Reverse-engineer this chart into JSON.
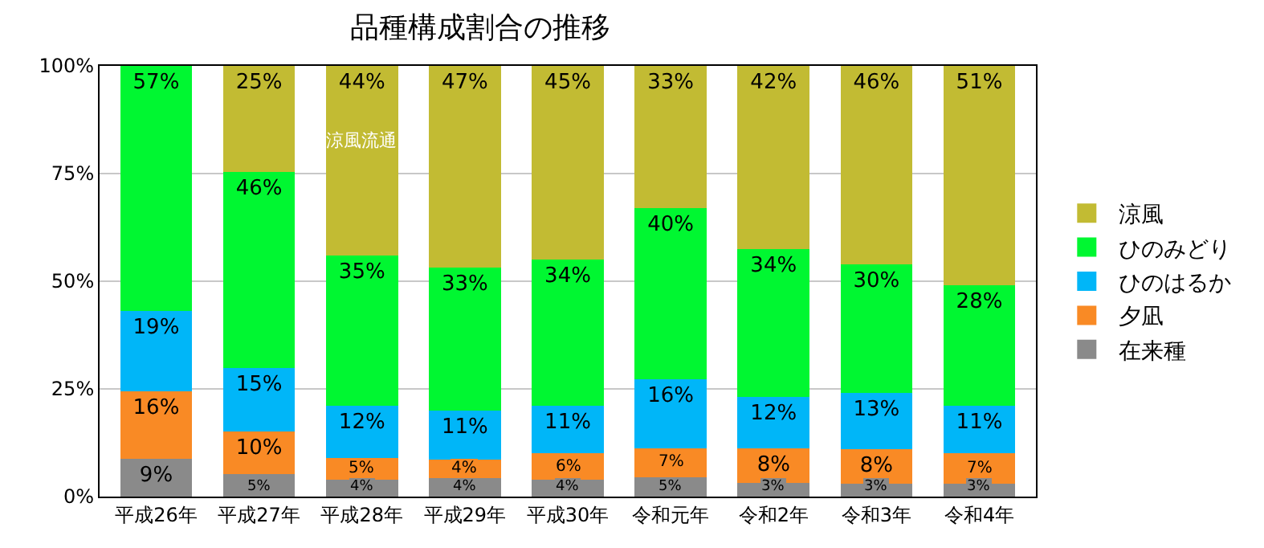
{
  "chart_data": {
    "type": "bar",
    "stacked": true,
    "title": "品種構成割合の推移",
    "categories": [
      "平成26年",
      "平成27年",
      "平成28年",
      "平成29年",
      "平成30年",
      "令和元年",
      "令和2年",
      "令和3年",
      "令和4年"
    ],
    "series": [
      {
        "name": "在来種",
        "color": "#8a8a8a",
        "values": [
          8.7,
          5.3,
          4,
          4.2,
          4,
          4.5,
          3.2,
          3,
          3
        ],
        "value_labels": [
          "9%",
          "5%",
          "4%",
          "4%",
          "4%",
          "5%",
          "3%",
          "3%",
          "3%"
        ]
      },
      {
        "name": "夕凪",
        "color": "#f98a25",
        "values": [
          15.8,
          9.9,
          5,
          4.4,
          6,
          6.7,
          8,
          8,
          7
        ],
        "value_labels": [
          "16%",
          "10%",
          "5%",
          "4%",
          "6%",
          "7%",
          "8%",
          "8%",
          "7%"
        ]
      },
      {
        "name": "ひのはるか",
        "color": "#00b6f8",
        "values": [
          18.6,
          14.7,
          12,
          11.3,
          11,
          16,
          12,
          13,
          11
        ],
        "value_labels": [
          "19%",
          "15%",
          "12%",
          "11%",
          "11%",
          "16%",
          "12%",
          "13%",
          "11%"
        ]
      },
      {
        "name": "ひのみどり",
        "color": "#00f731",
        "values": [
          56.9,
          45.5,
          35,
          33.3,
          34,
          39.8,
          34.3,
          30,
          28
        ],
        "value_labels": [
          "57%",
          "46%",
          "35%",
          "33%",
          "34%",
          "40%",
          "34%",
          "30%",
          "28%"
        ]
      },
      {
        "name": "涼風",
        "color": "#c2bb33",
        "values": [
          null,
          24.6,
          44,
          46.8,
          45,
          33,
          42.5,
          46,
          51
        ],
        "value_labels": [
          null,
          "25%",
          "44%",
          "47%",
          "45%",
          "33%",
          "42%",
          "46%",
          "51%"
        ]
      }
    ],
    "ylim": [
      0,
      100
    ],
    "yticks": [
      {
        "value": 0,
        "label": "0%"
      },
      {
        "value": 25,
        "label": "25%"
      },
      {
        "value": 50,
        "label": "50%"
      },
      {
        "value": 75,
        "label": "75%"
      },
      {
        "value": 100,
        "label": "100%"
      }
    ],
    "grid": "y",
    "legend": "right",
    "annotations": [
      "涼風流通"
    ]
  }
}
